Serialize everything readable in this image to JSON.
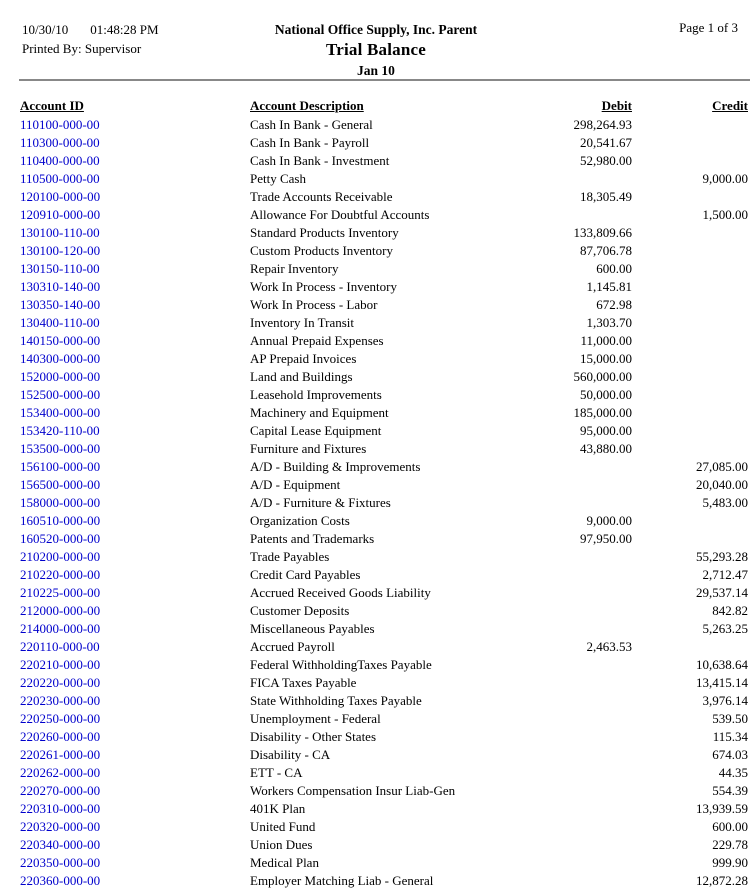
{
  "header": {
    "date": "10/30/10",
    "time": "01:48:28 PM",
    "printed_by_label": "Printed By:",
    "printed_by": "Supervisor",
    "company": "National Office Supply, Inc. Parent",
    "title": "Trial Balance",
    "period": "Jan 10",
    "page_info": "Page 1 of 3"
  },
  "colors": {
    "account_link": "#0000CC",
    "text": "#000000",
    "rule": "#888888"
  },
  "table": {
    "columns": [
      "Account ID",
      "Account Description",
      "Debit",
      "Credit"
    ],
    "rows": [
      {
        "account_id": "110100-000-00",
        "description": "Cash In Bank - General",
        "debit": "298,264.93",
        "credit": ""
      },
      {
        "account_id": "110300-000-00",
        "description": "Cash In Bank - Payroll",
        "debit": "20,541.67",
        "credit": ""
      },
      {
        "account_id": "110400-000-00",
        "description": "Cash In Bank - Investment",
        "debit": "52,980.00",
        "credit": ""
      },
      {
        "account_id": "110500-000-00",
        "description": "Petty Cash",
        "debit": "",
        "credit": "9,000.00"
      },
      {
        "account_id": "120100-000-00",
        "description": "Trade Accounts Receivable",
        "debit": "18,305.49",
        "credit": ""
      },
      {
        "account_id": "120910-000-00",
        "description": "Allowance For Doubtful Accounts",
        "debit": "",
        "credit": "1,500.00"
      },
      {
        "account_id": "130100-110-00",
        "description": "Standard Products Inventory",
        "debit": "133,809.66",
        "credit": ""
      },
      {
        "account_id": "130100-120-00",
        "description": "Custom Products Inventory",
        "debit": "87,706.78",
        "credit": ""
      },
      {
        "account_id": "130150-110-00",
        "description": "Repair Inventory",
        "debit": "600.00",
        "credit": ""
      },
      {
        "account_id": "130310-140-00",
        "description": "Work In Process - Inventory",
        "debit": "1,145.81",
        "credit": ""
      },
      {
        "account_id": "130350-140-00",
        "description": "Work In Process - Labor",
        "debit": "672.98",
        "credit": ""
      },
      {
        "account_id": "130400-110-00",
        "description": "Inventory In Transit",
        "debit": "1,303.70",
        "credit": ""
      },
      {
        "account_id": "140150-000-00",
        "description": "Annual Prepaid Expenses",
        "debit": "11,000.00",
        "credit": ""
      },
      {
        "account_id": "140300-000-00",
        "description": "AP Prepaid Invoices",
        "debit": "15,000.00",
        "credit": ""
      },
      {
        "account_id": "152000-000-00",
        "description": "Land and Buildings",
        "debit": "560,000.00",
        "credit": ""
      },
      {
        "account_id": "152500-000-00",
        "description": "Leasehold Improvements",
        "debit": "50,000.00",
        "credit": ""
      },
      {
        "account_id": "153400-000-00",
        "description": "Machinery and Equipment",
        "debit": "185,000.00",
        "credit": ""
      },
      {
        "account_id": "153420-110-00",
        "description": "Capital Lease Equipment",
        "debit": "95,000.00",
        "credit": ""
      },
      {
        "account_id": "153500-000-00",
        "description": "Furniture and Fixtures",
        "debit": "43,880.00",
        "credit": ""
      },
      {
        "account_id": "156100-000-00",
        "description": "A/D - Building & Improvements",
        "debit": "",
        "credit": "27,085.00"
      },
      {
        "account_id": "156500-000-00",
        "description": "A/D - Equipment",
        "debit": "",
        "credit": "20,040.00"
      },
      {
        "account_id": "158000-000-00",
        "description": "A/D - Furniture & Fixtures",
        "debit": "",
        "credit": "5,483.00"
      },
      {
        "account_id": "160510-000-00",
        "description": "Organization Costs",
        "debit": "9,000.00",
        "credit": ""
      },
      {
        "account_id": "160520-000-00",
        "description": "Patents and Trademarks",
        "debit": "97,950.00",
        "credit": ""
      },
      {
        "account_id": "210200-000-00",
        "description": "Trade Payables",
        "debit": "",
        "credit": "55,293.28"
      },
      {
        "account_id": "210220-000-00",
        "description": "Credit Card Payables",
        "debit": "",
        "credit": "2,712.47"
      },
      {
        "account_id": "210225-000-00",
        "description": "Accrued Received Goods Liability",
        "debit": "",
        "credit": "29,537.14"
      },
      {
        "account_id": "212000-000-00",
        "description": "Customer Deposits",
        "debit": "",
        "credit": "842.82"
      },
      {
        "account_id": "214000-000-00",
        "description": "Miscellaneous Payables",
        "debit": "",
        "credit": "5,263.25"
      },
      {
        "account_id": "220110-000-00",
        "description": "Accrued Payroll",
        "debit": "2,463.53",
        "credit": ""
      },
      {
        "account_id": "220210-000-00",
        "description": "Federal WithholdingTaxes Payable",
        "debit": "",
        "credit": "10,638.64"
      },
      {
        "account_id": "220220-000-00",
        "description": "FICA Taxes Payable",
        "debit": "",
        "credit": "13,415.14"
      },
      {
        "account_id": "220230-000-00",
        "description": "State Withholding Taxes Payable",
        "debit": "",
        "credit": "3,976.14"
      },
      {
        "account_id": "220250-000-00",
        "description": "Unemployment - Federal",
        "debit": "",
        "credit": "539.50"
      },
      {
        "account_id": "220260-000-00",
        "description": "Disability - Other States",
        "debit": "",
        "credit": "115.34"
      },
      {
        "account_id": "220261-000-00",
        "description": "Disability - CA",
        "debit": "",
        "credit": "674.03"
      },
      {
        "account_id": "220262-000-00",
        "description": "ETT - CA",
        "debit": "",
        "credit": "44.35"
      },
      {
        "account_id": "220270-000-00",
        "description": "Workers Compensation Insur Liab-Gen",
        "debit": "",
        "credit": "554.39"
      },
      {
        "account_id": "220310-000-00",
        "description": "401K Plan",
        "debit": "",
        "credit": "13,939.59"
      },
      {
        "account_id": "220320-000-00",
        "description": "United Fund",
        "debit": "",
        "credit": "600.00"
      },
      {
        "account_id": "220340-000-00",
        "description": "Union Dues",
        "debit": "",
        "credit": "229.78"
      },
      {
        "account_id": "220350-000-00",
        "description": "Medical Plan",
        "debit": "",
        "credit": "999.90"
      },
      {
        "account_id": "220360-000-00",
        "description": "Employer Matching Liab - General",
        "debit": "",
        "credit": "12,872.28"
      }
    ]
  }
}
